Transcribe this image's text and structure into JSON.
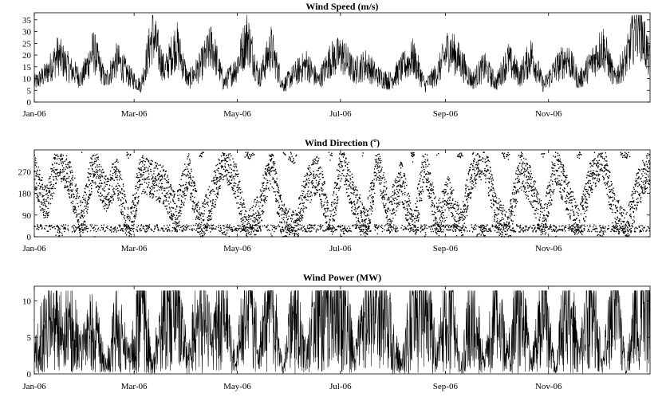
{
  "chart_data": [
    {
      "type": "line",
      "title": "Wind Speed (m/s)",
      "xlabel": "",
      "ylabel": "",
      "x_ticks": [
        "Jan-06",
        "Mar-06",
        "May-06",
        "Jul-06",
        "Sep-06",
        "Nov-06"
      ],
      "y_ticks": [
        "0",
        "5",
        "10",
        "15",
        "20",
        "25",
        "30",
        "35"
      ],
      "xlim": [
        "2006-01-01",
        "2006-12-31"
      ],
      "ylim": [
        0,
        38
      ],
      "grid": false,
      "series": [
        {
          "x": [
            "2006-01-01",
            "2006-01-08",
            "2006-01-15",
            "2006-01-22",
            "2006-01-29",
            "2006-02-05",
            "2006-02-12",
            "2006-02-19",
            "2006-02-26",
            "2006-03-05",
            "2006-03-12",
            "2006-03-19",
            "2006-03-26",
            "2006-04-02",
            "2006-04-09",
            "2006-04-16",
            "2006-04-23",
            "2006-04-30",
            "2006-05-07",
            "2006-05-14",
            "2006-05-21",
            "2006-05-28",
            "2006-06-04",
            "2006-06-11",
            "2006-06-18",
            "2006-06-25",
            "2006-07-02",
            "2006-07-09",
            "2006-07-16",
            "2006-07-23",
            "2006-07-30",
            "2006-08-06",
            "2006-08-13",
            "2006-08-20",
            "2006-08-27",
            "2006-09-03",
            "2006-09-10",
            "2006-09-17",
            "2006-09-24",
            "2006-10-01",
            "2006-10-08",
            "2006-10-15",
            "2006-10-22",
            "2006-10-29",
            "2006-11-05",
            "2006-11-12",
            "2006-11-19",
            "2006-11-26",
            "2006-12-03",
            "2006-12-10",
            "2006-12-17",
            "2006-12-24",
            "2006-12-31"
          ],
          "values": [
            8,
            12,
            20,
            14,
            10,
            22,
            9,
            18,
            11,
            7,
            29,
            13,
            25,
            9,
            15,
            24,
            8,
            14,
            28,
            10,
            23,
            7,
            12,
            16,
            9,
            18,
            20,
            13,
            16,
            11,
            9,
            14,
            19,
            7,
            12,
            23,
            17,
            9,
            15,
            8,
            18,
            11,
            20,
            7,
            14,
            19,
            9,
            16,
            24,
            10,
            18,
            36,
            16
          ]
        }
      ]
    },
    {
      "type": "scatter",
      "title": "Wind Direction (º)",
      "xlabel": "",
      "ylabel": "",
      "x_ticks": [
        "Jan-06",
        "Mar-06",
        "May-06",
        "Jul-06",
        "Sep-06",
        "Nov-06"
      ],
      "y_ticks": [
        "0",
        "90",
        "180",
        "270"
      ],
      "xlim": [
        "2006-01-01",
        "2006-12-31"
      ],
      "ylim": [
        0,
        360
      ],
      "grid": false,
      "series": [
        {
          "x": [
            "2006-01-01",
            "2006-01-08",
            "2006-01-15",
            "2006-01-22",
            "2006-01-29",
            "2006-02-05",
            "2006-02-12",
            "2006-02-19",
            "2006-02-26",
            "2006-03-05",
            "2006-03-12",
            "2006-03-19",
            "2006-03-26",
            "2006-04-02",
            "2006-04-09",
            "2006-04-16",
            "2006-04-23",
            "2006-04-30",
            "2006-05-07",
            "2006-05-14",
            "2006-05-21",
            "2006-05-28",
            "2006-06-04",
            "2006-06-11",
            "2006-06-18",
            "2006-06-25",
            "2006-07-02",
            "2006-07-09",
            "2006-07-16",
            "2006-07-23",
            "2006-07-30",
            "2006-08-06",
            "2006-08-13",
            "2006-08-20",
            "2006-08-27",
            "2006-09-03",
            "2006-09-10",
            "2006-09-17",
            "2006-09-24",
            "2006-10-01",
            "2006-10-08",
            "2006-10-15",
            "2006-10-22",
            "2006-10-29",
            "2006-11-05",
            "2006-11-12",
            "2006-11-19",
            "2006-11-26",
            "2006-12-03",
            "2006-12-10",
            "2006-12-17",
            "2006-12-24",
            "2006-12-31"
          ],
          "values": [
            270,
            120,
            330,
            240,
            60,
            300,
            180,
            250,
            30,
            260,
            240,
            210,
            90,
            280,
            40,
            160,
            320,
            240,
            20,
            110,
            300,
            60,
            20,
            200,
            270,
            30,
            330,
            150,
            40,
            300,
            90,
            240,
            20,
            310,
            60,
            180,
            30,
            270,
            330,
            100,
            20,
            280,
            210,
            40,
            300,
            180,
            30,
            250,
            330,
            100,
            20,
            200,
            300
          ]
        }
      ]
    },
    {
      "type": "line",
      "title": "Wind Power (MW)",
      "xlabel": "",
      "ylabel": "",
      "x_ticks": [
        "Jan-06",
        "Mar-06",
        "May-06",
        "Jul-06",
        "Sep-06",
        "Nov-06"
      ],
      "y_ticks": [
        "0",
        "5",
        "10"
      ],
      "xlim": [
        "2006-01-01",
        "2006-12-31"
      ],
      "ylim": [
        0,
        12
      ],
      "grid": false,
      "series": [
        {
          "x": [
            "2006-01-01",
            "2006-01-08",
            "2006-01-15",
            "2006-01-22",
            "2006-01-29",
            "2006-02-05",
            "2006-02-12",
            "2006-02-19",
            "2006-02-26",
            "2006-03-05",
            "2006-03-12",
            "2006-03-19",
            "2006-03-26",
            "2006-04-02",
            "2006-04-09",
            "2006-04-16",
            "2006-04-23",
            "2006-04-30",
            "2006-05-07",
            "2006-05-14",
            "2006-05-21",
            "2006-05-28",
            "2006-06-04",
            "2006-06-11",
            "2006-06-18",
            "2006-06-25",
            "2006-07-02",
            "2006-07-09",
            "2006-07-16",
            "2006-07-23",
            "2006-07-30",
            "2006-08-06",
            "2006-08-13",
            "2006-08-20",
            "2006-08-27",
            "2006-09-03",
            "2006-09-10",
            "2006-09-17",
            "2006-09-24",
            "2006-10-01",
            "2006-10-08",
            "2006-10-15",
            "2006-10-22",
            "2006-10-29",
            "2006-11-05",
            "2006-11-12",
            "2006-11-19",
            "2006-11-26",
            "2006-12-03",
            "2006-12-10",
            "2006-12-17",
            "2006-12-24",
            "2006-12-31"
          ],
          "values": [
            2,
            7.5,
            6,
            7.2,
            3,
            7,
            1,
            6.5,
            2,
            11,
            1,
            10,
            9,
            2,
            11,
            4,
            10,
            1,
            11,
            3,
            10,
            0.5,
            9,
            2,
            11,
            8,
            11,
            2,
            7,
            11,
            6,
            1,
            9,
            10,
            2,
            11,
            0.5,
            10,
            1,
            9,
            2,
            10.5,
            1,
            9,
            0.5,
            11,
            2,
            10,
            1,
            11,
            0.5,
            10.8,
            11
          ]
        }
      ]
    }
  ]
}
